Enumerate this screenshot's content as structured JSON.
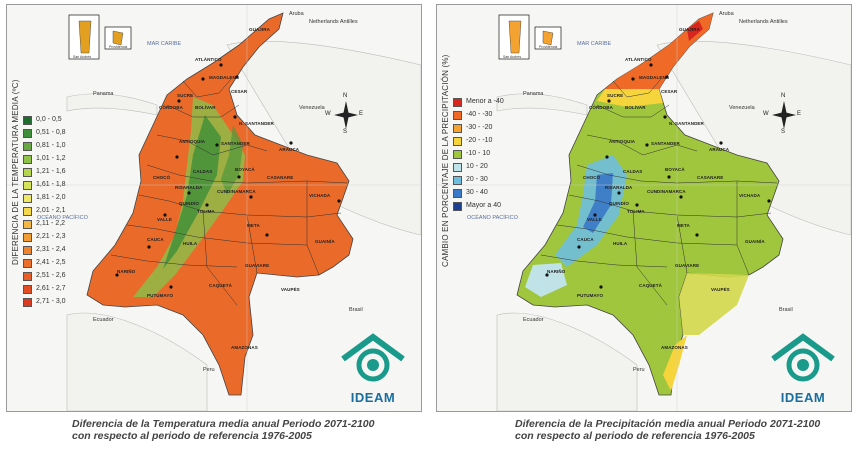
{
  "panels": {
    "temperature": {
      "legend_title": "DIFERENCIA DE LA TEMPERATURA MEDIA (ºC)",
      "legend": [
        {
          "label": "0,0 - 0,5",
          "color": "#1e6b2e"
        },
        {
          "label": "0,51 - 0,8",
          "color": "#3f8f3a"
        },
        {
          "label": "0,81 - 1,0",
          "color": "#68a843"
        },
        {
          "label": "1,01 - 1,2",
          "color": "#8fc24a"
        },
        {
          "label": "1,21 - 1,6",
          "color": "#b4d64f"
        },
        {
          "label": "1,61 - 1,8",
          "color": "#d4e35a"
        },
        {
          "label": "1,81 - 2,0",
          "color": "#efe867"
        },
        {
          "label": "2,01 - 2,1",
          "color": "#f6d84f"
        },
        {
          "label": "2,11 - 2,2",
          "color": "#f4b63e"
        },
        {
          "label": "2,21 - 2,3",
          "color": "#f29c36"
        },
        {
          "label": "2,31 - 2,4",
          "color": "#ee8430"
        },
        {
          "label": "2,41 - 2,5",
          "color": "#eb6f2b"
        },
        {
          "label": "2,51 - 2,6",
          "color": "#e85e27"
        },
        {
          "label": "2,61 - 2,7",
          "color": "#e24e24"
        },
        {
          "label": "2,71 - 3,0",
          "color": "#d83b20"
        }
      ],
      "caption_line1": "Diferencia de la Temperatura media anual Periodo 2071-2100",
      "caption_line2": "con respecto al periodo de referencia 1976-2005"
    },
    "precipitation": {
      "legend_title": "CAMBIO EN PORCENTAJE DE LA PRECIPITACIÓN (%)",
      "legend": [
        {
          "label": "Menor a -40",
          "color": "#d8261f"
        },
        {
          "label": "-40 - -30",
          "color": "#ee6a26"
        },
        {
          "label": "-30 - -20",
          "color": "#f4a230"
        },
        {
          "label": "-20 - -10",
          "color": "#f5d43c"
        },
        {
          "label": "-10 - 10",
          "color": "#9fc63c"
        },
        {
          "label": "10 - 20",
          "color": "#bfe3e6"
        },
        {
          "label": "20 - 30",
          "color": "#6fbede"
        },
        {
          "label": "30 - 40",
          "color": "#3a78c8"
        },
        {
          "label": "Mayor a 40",
          "color": "#1d3f8f"
        }
      ],
      "caption_line1": "Diferencia de la Precipitación media anual Periodo 2071-2100",
      "caption_line2": "con respecto al periodo de referencia 1976-2005"
    }
  },
  "map_labels": {
    "aruba": "Aruba",
    "antilles": "Netherlands Antilles",
    "mar_caribe": "MAR CARIBE",
    "panama": "Panama",
    "venezuela": "Venezuela",
    "oceano": "OCÉANO PACÍFICO",
    "ecuador": "Ecuador",
    "peru": "Peru",
    "brasil": "Brasil",
    "san_andres": "San Andrés",
    "providencia": "Providencia"
  },
  "departments": {
    "guajira": "GUAJIRA",
    "atlantico": "ATLÁNTICO",
    "magdalena": "MAGDALENA",
    "bolivar": "BOLÍVAR",
    "cesar": "CESAR",
    "sucre": "SUCRE",
    "cordoba": "CÓRDOBA",
    "nsantander": "N. SANTANDER",
    "antioquia": "ANTIOQUIA",
    "santander": "SANTANDER",
    "arauca": "ARAUCA",
    "boyaca": "BOYACÁ",
    "casanare": "CASANARE",
    "choco": "CHOCÓ",
    "caldas": "CALDAS",
    "cundinamarca": "CUNDINAMARCA",
    "vichada": "VICHADA",
    "risaralda": "RISARALDA",
    "quindio": "QUINDÍO",
    "tolima": "TOLIMA",
    "valle": "VALLE",
    "meta": "META",
    "cauca": "CAUCA",
    "huila": "HUILA",
    "guainia": "GUAINÍA",
    "narino": "NARIÑO",
    "guaviare": "GUAVIARE",
    "putumayo": "PUTUMAYO",
    "caqueta": "CAQUETÁ",
    "vaupes": "VAUPÉS",
    "amazonas": "AMAZONAS"
  },
  "compass": {
    "n": "N",
    "s": "S",
    "e": "E",
    "w": "W"
  },
  "logo": {
    "text": "IDEAM"
  }
}
